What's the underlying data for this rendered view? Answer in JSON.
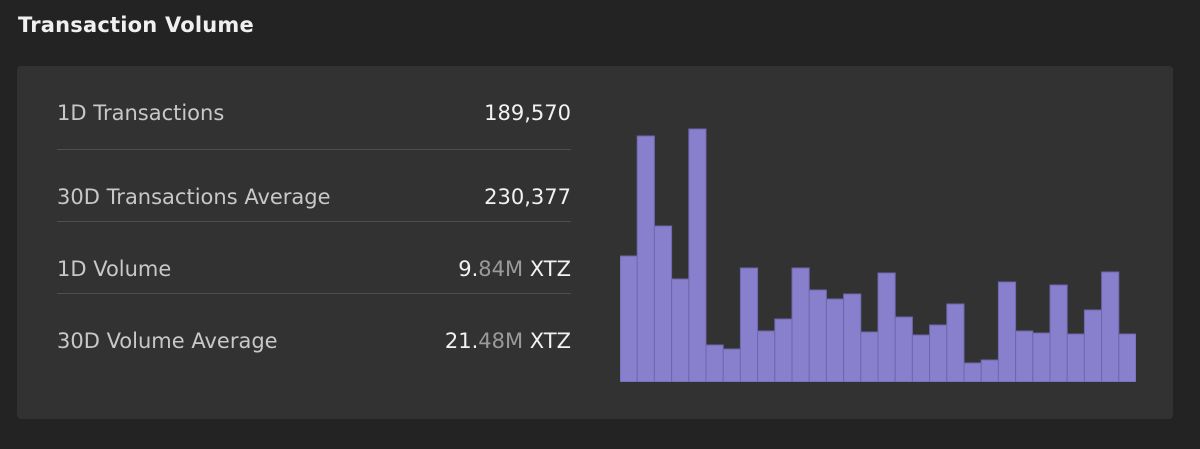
{
  "header": {
    "title": "Transaction Volume"
  },
  "stats": [
    {
      "label": "1D Transactions",
      "value_main": "189,570",
      "value_dim": "",
      "unit": ""
    },
    {
      "label": "30D Transactions Average",
      "value_main": "230,377",
      "value_dim": "",
      "unit": ""
    },
    {
      "label": "1D Volume",
      "value_main": "9.",
      "value_dim": "84M",
      "unit": " XTZ"
    },
    {
      "label": "30D Volume Average",
      "value_main": "21.",
      "value_dim": "48M",
      "unit": " XTZ"
    }
  ],
  "chart_data": {
    "type": "bar",
    "color": "#8880cc",
    "values": [
      126,
      246,
      156,
      103,
      253,
      37,
      33,
      114,
      51,
      63,
      114,
      92,
      83,
      88,
      50,
      109,
      65,
      47,
      57,
      78,
      19,
      22,
      100,
      51,
      49,
      97,
      48,
      72,
      110,
      48
    ]
  }
}
